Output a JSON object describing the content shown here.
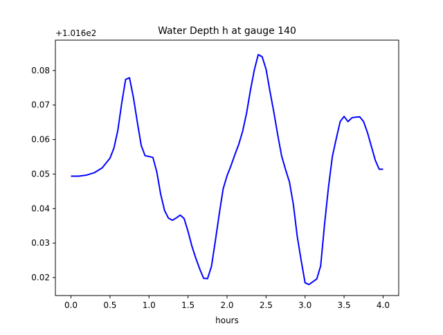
{
  "chart_data": {
    "type": "line",
    "title": "Water Depth h at gauge 140",
    "xlabel": "hours",
    "ylabel": "",
    "offset_label": "+1.016e2",
    "xlim": [
      -0.2,
      4.2
    ],
    "ylim": [
      0.0148,
      0.0888
    ],
    "xticks": [
      0.0,
      0.5,
      1.0,
      1.5,
      2.0,
      2.5,
      3.0,
      3.5,
      4.0
    ],
    "xtick_labels": [
      "0.0",
      "0.5",
      "1.0",
      "1.5",
      "2.0",
      "2.5",
      "3.0",
      "3.5",
      "4.0"
    ],
    "yticks": [
      0.02,
      0.03,
      0.04,
      0.05,
      0.06,
      0.07,
      0.08
    ],
    "ytick_labels": [
      "0.02",
      "0.03",
      "0.04",
      "0.05",
      "0.06",
      "0.07",
      "0.08"
    ],
    "grid": false,
    "series": [
      {
        "color": "#0000ff",
        "x": [
          0.0,
          0.1,
          0.2,
          0.3,
          0.4,
          0.5,
          0.55,
          0.6,
          0.65,
          0.7,
          0.75,
          0.8,
          0.85,
          0.9,
          0.95,
          1.0,
          1.05,
          1.1,
          1.15,
          1.2,
          1.25,
          1.3,
          1.35,
          1.4,
          1.45,
          1.5,
          1.55,
          1.6,
          1.65,
          1.7,
          1.75,
          1.8,
          1.85,
          1.9,
          1.95,
          2.0,
          2.05,
          2.1,
          2.15,
          2.2,
          2.25,
          2.3,
          2.35,
          2.4,
          2.45,
          2.5,
          2.55,
          2.6,
          2.65,
          2.7,
          2.75,
          2.8,
          2.85,
          2.9,
          2.95,
          3.0,
          3.05,
          3.1,
          3.15,
          3.2,
          3.25,
          3.3,
          3.35,
          3.4,
          3.45,
          3.5,
          3.55,
          3.6,
          3.65,
          3.7,
          3.75,
          3.8,
          3.85,
          3.9,
          3.95,
          4.0
        ],
        "y": [
          0.0494,
          0.0494,
          0.0497,
          0.0504,
          0.0518,
          0.0546,
          0.0575,
          0.0626,
          0.0705,
          0.0774,
          0.0779,
          0.0722,
          0.0651,
          0.0583,
          0.0553,
          0.0551,
          0.0548,
          0.0506,
          0.0441,
          0.0394,
          0.0372,
          0.0366,
          0.0373,
          0.0381,
          0.0371,
          0.0334,
          0.0291,
          0.0256,
          0.0225,
          0.0198,
          0.0197,
          0.0232,
          0.0306,
          0.0384,
          0.0457,
          0.0495,
          0.0524,
          0.0556,
          0.0586,
          0.0624,
          0.0676,
          0.0743,
          0.0802,
          0.0846,
          0.084,
          0.0804,
          0.074,
          0.0679,
          0.0613,
          0.0552,
          0.0513,
          0.0477,
          0.0412,
          0.0319,
          0.025,
          0.0185,
          0.018,
          0.0188,
          0.0196,
          0.0234,
          0.0355,
          0.0462,
          0.0551,
          0.0603,
          0.0652,
          0.0667,
          0.0652,
          0.0663,
          0.0665,
          0.0666,
          0.0652,
          0.062,
          0.058,
          0.054,
          0.0514,
          0.0514
        ]
      }
    ]
  }
}
